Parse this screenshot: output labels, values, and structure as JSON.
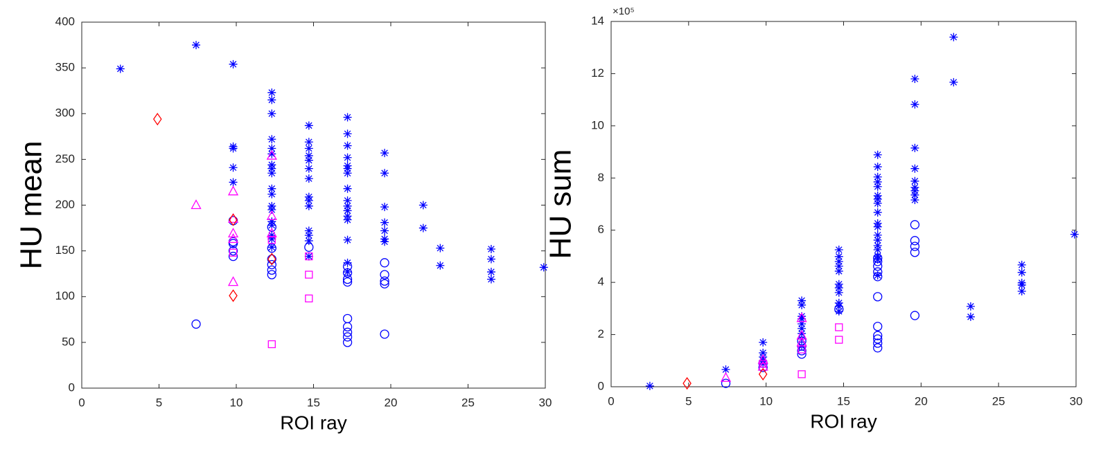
{
  "chart_data": [
    {
      "type": "scatter",
      "xlabel": "ROI ray",
      "ylabel": "HU mean",
      "xlim": [
        0,
        30
      ],
      "xticks": [
        0,
        5,
        10,
        15,
        20,
        25,
        30
      ],
      "ylim": [
        0,
        400
      ],
      "yticks": [
        0,
        50,
        100,
        150,
        200,
        250,
        300,
        350,
        400
      ],
      "series": [
        {
          "marker": "asterisk",
          "color": "#0000ff",
          "x": [
            2.5,
            7.4,
            9.8,
            9.8,
            9.8,
            9.8,
            9.8,
            12.3,
            12.3,
            12.3,
            12.3,
            12.3,
            12.3,
            12.3,
            12.3,
            12.3,
            12.3,
            12.3,
            12.3,
            12.3,
            12.3,
            12.3,
            12.3,
            12.3,
            12.3,
            14.7,
            14.7,
            14.7,
            14.7,
            14.7,
            14.7,
            14.7,
            14.7,
            14.7,
            14.7,
            14.7,
            14.7,
            14.7,
            14.7,
            17.2,
            17.2,
            17.2,
            17.2,
            17.2,
            17.2,
            17.2,
            17.2,
            17.2,
            17.2,
            17.2,
            17.2,
            17.2,
            17.2,
            17.2,
            17.2,
            19.6,
            19.6,
            19.6,
            19.6,
            19.6,
            19.6,
            19.6,
            22.1,
            22.1,
            23.2,
            23.2,
            26.5,
            26.5,
            26.5,
            26.5,
            29.9
          ],
          "y": [
            349,
            375,
            354,
            264,
            262,
            241,
            225,
            323,
            315,
            300,
            272,
            262,
            256,
            244,
            240,
            235,
            218,
            212,
            199,
            195,
            182,
            178,
            167,
            163,
            154,
            287,
            269,
            262,
            254,
            249,
            240,
            229,
            209,
            205,
            199,
            172,
            167,
            161,
            144,
            296,
            278,
            265,
            252,
            243,
            240,
            235,
            218,
            205,
            199,
            194,
            188,
            184,
            162,
            137,
            127,
            257,
            235,
            198,
            181,
            172,
            163,
            160,
            200,
            175,
            153,
            134,
            152,
            141,
            127,
            119,
            132
          ]
        },
        {
          "marker": "circle",
          "color": "#0000ff",
          "x": [
            7.4,
            9.8,
            9.8,
            9.8,
            9.8,
            9.8,
            12.3,
            12.3,
            12.3,
            12.3,
            12.3,
            12.3,
            14.7,
            17.2,
            17.2,
            17.2,
            17.2,
            17.2,
            17.2,
            17.2,
            17.2,
            17.2,
            19.6,
            19.6,
            19.6,
            19.6,
            19.6
          ],
          "y": [
            70,
            183,
            160,
            158,
            150,
            144,
            176,
            153,
            141,
            135,
            129,
            124,
            154,
            133,
            126,
            119,
            116,
            76,
            67,
            61,
            56,
            50,
            137,
            124,
            117,
            114,
            59
          ]
        },
        {
          "marker": "triangle",
          "color": "#ff00ff",
          "x": [
            7.4,
            9.8,
            9.8,
            9.8,
            9.8,
            9.8,
            12.3,
            12.3,
            12.3
          ],
          "y": [
            200,
            215,
            185,
            169,
            163,
            116,
            254,
            188,
            169
          ]
        },
        {
          "marker": "square",
          "color": "#ff00ff",
          "x": [
            9.8,
            12.3,
            12.3,
            14.7,
            14.7,
            14.7
          ],
          "y": [
            148,
            162,
            48,
            144,
            124,
            98
          ]
        },
        {
          "marker": "diamond",
          "color": "#ff0000",
          "x": [
            4.9,
            9.8,
            9.8,
            12.3
          ],
          "y": [
            294,
            184,
            101,
            141
          ]
        }
      ]
    },
    {
      "type": "scatter",
      "xlabel": "ROI ray",
      "ylabel": "HU sum",
      "y_exponent_label": "×10⁵",
      "xlim": [
        0,
        30
      ],
      "xticks": [
        0,
        5,
        10,
        15,
        20,
        25,
        30
      ],
      "ylim": [
        0,
        14
      ],
      "yticks": [
        0,
        2,
        4,
        6,
        8,
        10,
        12,
        14
      ],
      "series": [
        {
          "marker": "asterisk",
          "color": "#0000ff",
          "x": [
            2.5,
            7.4,
            9.8,
            9.8,
            9.8,
            9.8,
            9.8,
            12.3,
            12.3,
            12.3,
            12.3,
            12.3,
            12.3,
            12.3,
            12.3,
            12.3,
            14.7,
            14.7,
            14.7,
            14.7,
            14.7,
            14.7,
            14.7,
            14.7,
            14.7,
            14.7,
            14.7,
            17.2,
            17.2,
            17.2,
            17.2,
            17.2,
            17.2,
            17.2,
            17.2,
            17.2,
            17.2,
            17.2,
            17.2,
            17.2,
            17.2,
            17.2,
            17.2,
            17.2,
            17.2,
            19.6,
            19.6,
            19.6,
            19.6,
            19.6,
            19.6,
            19.6,
            19.6,
            19.6,
            22.1,
            22.1,
            23.2,
            23.2,
            26.5,
            26.5,
            26.5,
            26.5,
            26.5,
            29.9
          ],
          "y": [
            0.03,
            0.66,
            1.7,
            1.3,
            1.14,
            1.0,
            0.88,
            3.3,
            3.13,
            2.7,
            2.6,
            2.41,
            2.23,
            2.04,
            1.83,
            1.56,
            5.25,
            4.99,
            4.8,
            4.62,
            4.43,
            3.93,
            3.79,
            3.61,
            3.21,
            3.08,
            2.89,
            8.89,
            8.43,
            8.04,
            7.85,
            7.67,
            7.32,
            7.19,
            7.03,
            6.68,
            6.26,
            6.13,
            5.81,
            5.62,
            5.41,
            5.25,
            5.01,
            4.88,
            4.27,
            11.8,
            10.82,
            9.15,
            8.36,
            7.88,
            7.64,
            7.51,
            7.35,
            7.16,
            13.4,
            11.67,
            3.08,
            2.68,
            4.67,
            4.38,
            3.98,
            3.9,
            3.66,
            5.84
          ]
        },
        {
          "marker": "circle",
          "color": "#0000ff",
          "x": [
            7.4,
            9.8,
            9.8,
            12.3,
            12.3,
            12.3,
            12.3,
            14.7,
            17.2,
            17.2,
            17.2,
            17.2,
            17.2,
            17.2,
            17.2,
            17.2,
            17.2,
            17.2,
            17.2,
            19.6,
            19.6,
            19.6,
            19.6,
            19.6
          ],
          "y": [
            0.13,
            0.9,
            0.74,
            1.75,
            1.56,
            1.38,
            1.25,
            2.97,
            4.93,
            4.8,
            4.62,
            4.4,
            4.22,
            3.45,
            2.31,
            1.96,
            1.83,
            1.67,
            1.49,
            6.21,
            5.6,
            5.38,
            5.15,
            2.73
          ]
        },
        {
          "marker": "triangle",
          "color": "#ff00ff",
          "x": [
            7.4,
            9.8,
            9.8,
            12.3,
            12.3,
            12.3
          ],
          "y": [
            0.34,
            1.03,
            0.77,
            2.63,
            1.96,
            1.7
          ]
        },
        {
          "marker": "square",
          "color": "#ff00ff",
          "x": [
            9.8,
            12.3,
            12.3,
            14.7,
            14.7
          ],
          "y": [
            0.88,
            1.43,
            0.48,
            2.28,
            1.8
          ]
        },
        {
          "marker": "diamond",
          "color": "#ff0000",
          "x": [
            4.9,
            9.8
          ],
          "y": [
            0.13,
            0.48
          ]
        }
      ]
    }
  ]
}
